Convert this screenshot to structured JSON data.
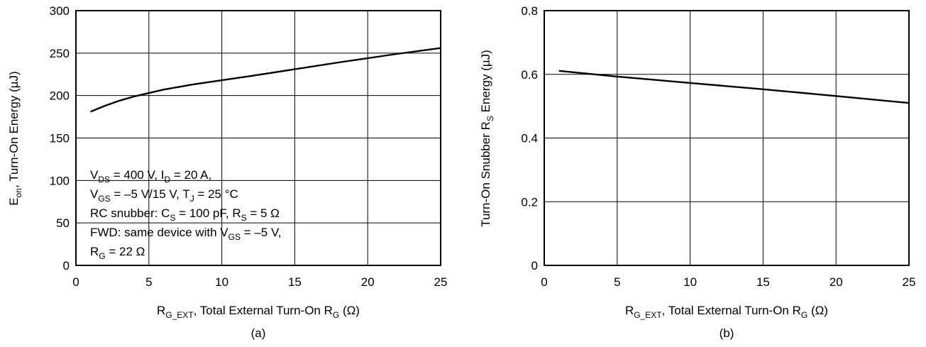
{
  "chart_data": [
    {
      "type": "line",
      "panel_caption": "(a)",
      "xlabel": "R_G_EXT, Total External Turn-On R_G (Ω)",
      "ylabel": "E_on, Turn-On Energy (µJ)",
      "xlim": [
        0,
        25
      ],
      "ylim": [
        0,
        300
      ],
      "xticks": [
        "0",
        "5",
        "10",
        "15",
        "20",
        "25"
      ],
      "yticks": [
        "0",
        "50",
        "100",
        "150",
        "200",
        "250",
        "300"
      ],
      "grid": true,
      "series": [
        {
          "x": [
            1,
            2,
            3,
            4,
            5,
            6,
            7,
            8,
            10,
            12,
            15,
            18,
            20,
            22,
            25
          ],
          "values": [
            181,
            188,
            194,
            199,
            203,
            207,
            210,
            213,
            218,
            223,
            231,
            239,
            244,
            249,
            256
          ]
        }
      ],
      "annotation_lines": [
        "VDS = 400 V, ID = 20 A,",
        "VGS = –5 V/15 V, TJ = 25 °C",
        "RC snubber: CS = 100 pF, RS = 5 Ω",
        "FWD: same device with VGS = –5 V,",
        "RG = 22 Ω"
      ]
    },
    {
      "type": "line",
      "panel_caption": "(b)",
      "xlabel": "R_G_EXT, Total External Turn-On R_G (Ω)",
      "ylabel": "Turn-On Snubber R_S Energy (µJ)",
      "xlim": [
        0,
        25
      ],
      "ylim": [
        0,
        0.8
      ],
      "xticks": [
        "0",
        "5",
        "10",
        "15",
        "20",
        "25"
      ],
      "yticks": [
        "0",
        "0.2",
        "0.4",
        "0.6",
        "0.8"
      ],
      "grid": true,
      "series": [
        {
          "x": [
            1,
            5,
            10,
            15,
            20,
            25
          ],
          "values": [
            0.611,
            0.593,
            0.573,
            0.553,
            0.532,
            0.51
          ]
        }
      ]
    }
  ]
}
